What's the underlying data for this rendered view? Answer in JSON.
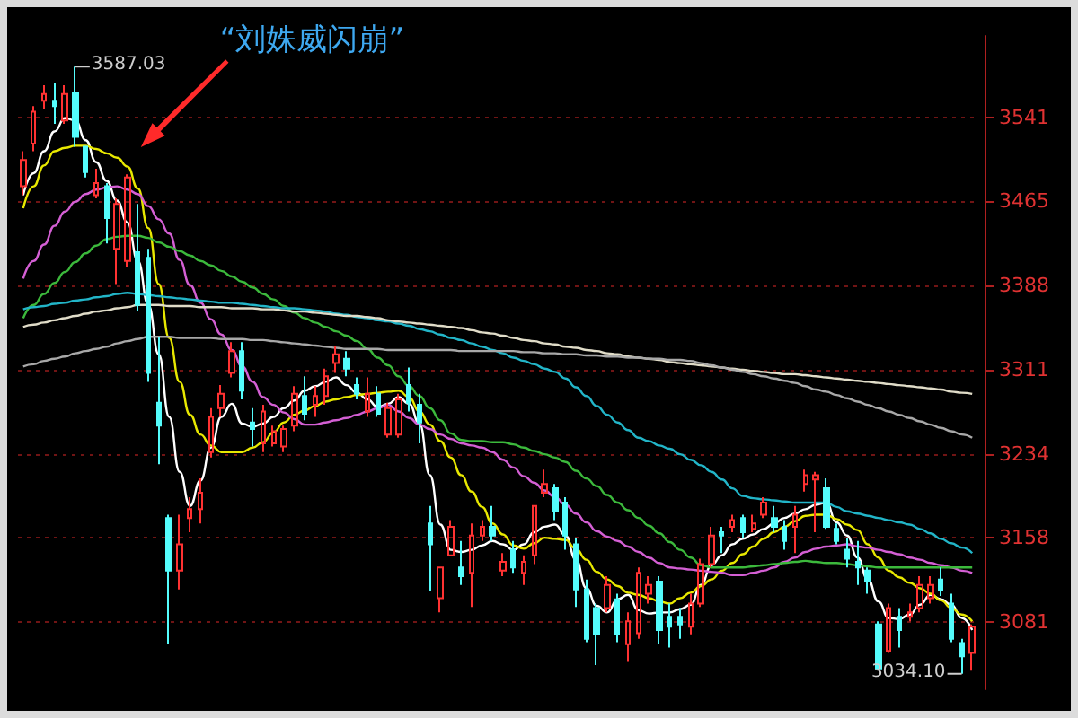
{
  "chart_data": {
    "type": "candlestick",
    "categories": [
      null,
      null,
      null,
      null,
      null,
      null,
      null,
      null,
      null,
      null,
      null,
      null,
      null,
      null,
      null,
      null,
      null,
      null,
      null,
      null,
      null,
      null,
      null,
      null,
      null,
      null,
      null,
      null,
      null,
      null,
      null,
      null,
      null,
      null,
      null,
      null,
      null,
      null,
      null,
      null,
      null,
      null,
      null,
      null,
      null,
      null,
      null,
      null,
      null,
      null,
      null,
      null,
      null,
      null,
      null,
      null,
      null,
      null,
      null,
      null,
      null,
      null,
      null,
      null,
      null,
      null,
      null,
      null,
      null,
      null,
      null,
      null,
      null,
      null,
      null,
      null,
      null,
      null,
      null,
      null,
      null,
      null,
      null,
      null,
      null,
      null,
      null,
      null,
      null,
      null,
      null,
      null
    ],
    "ohlc": [
      [
        3478,
        3510,
        3470,
        3502
      ],
      [
        3517,
        3551,
        3510,
        3546
      ],
      [
        3556,
        3570,
        3548,
        3562
      ],
      [
        3556,
        3572,
        3535,
        3551
      ],
      [
        3538,
        3570,
        3535,
        3562
      ],
      [
        3563,
        3587.03,
        3514,
        3523
      ],
      [
        3514,
        3514,
        3486,
        3491
      ],
      [
        3470,
        3494,
        3467,
        3481
      ],
      [
        3478,
        3481,
        3426,
        3449
      ],
      [
        3421,
        3467,
        3389,
        3462
      ],
      [
        3410,
        3489,
        3405,
        3486
      ],
      [
        3418,
        3462,
        3365,
        3370
      ],
      [
        3413,
        3421,
        3300,
        3308
      ],
      [
        3281,
        3341,
        3225,
        3260
      ],
      [
        3176,
        3179,
        3061,
        3128
      ],
      [
        3128,
        3179,
        3111,
        3152
      ],
      [
        3176,
        3195,
        3163,
        3184
      ],
      [
        3184,
        3212,
        3171,
        3199
      ],
      [
        3236,
        3276,
        3231,
        3268
      ],
      [
        3276,
        3297,
        3268,
        3289
      ],
      [
        3308,
        3336,
        3304,
        3328
      ],
      [
        3328,
        3336,
        3284,
        3292
      ],
      [
        3263,
        3276,
        3241,
        3257
      ],
      [
        3244,
        3279,
        3236,
        3273
      ],
      [
        3244,
        3260,
        3241,
        3255
      ],
      [
        3241,
        3260,
        3236,
        3257
      ],
      [
        3260,
        3296,
        3255,
        3289
      ],
      [
        3287,
        3305,
        3265,
        3271
      ],
      [
        3279,
        3296,
        3268,
        3287
      ],
      [
        3287,
        3312,
        3279,
        3305
      ],
      [
        3317,
        3333,
        3308,
        3325
      ],
      [
        3321,
        3328,
        3305,
        3312
      ],
      [
        3297,
        3304,
        3284,
        3289
      ],
      [
        3273,
        3304,
        3268,
        3289
      ],
      [
        3289,
        3296,
        3268,
        3271
      ],
      [
        3252,
        3281,
        3249,
        3276
      ],
      [
        3252,
        3289,
        3249,
        3284
      ],
      [
        3297,
        3313,
        3273,
        3281
      ],
      [
        3279,
        3289,
        3244,
        3263
      ],
      [
        3171,
        3187,
        3110,
        3152
      ],
      [
        3103,
        3131,
        3090,
        3131
      ],
      [
        3142,
        3174,
        3142,
        3168
      ],
      [
        3131,
        3155,
        3115,
        3123
      ],
      [
        3126,
        3171,
        3095,
        3160
      ],
      [
        3160,
        3174,
        3155,
        3168
      ],
      [
        3168,
        3187,
        3155,
        3160
      ],
      [
        3128,
        3144,
        3123,
        3136
      ],
      [
        3147,
        3155,
        3126,
        3131
      ],
      [
        3126,
        3142,
        3115,
        3136
      ],
      [
        3142,
        3187,
        3134,
        3187
      ],
      [
        3199,
        3220,
        3195,
        3207
      ],
      [
        3203,
        3207,
        3174,
        3182
      ],
      [
        3190,
        3195,
        3147,
        3160
      ],
      [
        3152,
        3158,
        3095,
        3111
      ],
      [
        3111,
        3120,
        3063,
        3066
      ],
      [
        3094,
        3098,
        3042,
        3070
      ],
      [
        3094,
        3123,
        3090,
        3115
      ],
      [
        3102,
        3107,
        3063,
        3070
      ],
      [
        3061,
        3090,
        3045,
        3082
      ],
      [
        3071,
        3131,
        3066,
        3126
      ],
      [
        3107,
        3123,
        3098,
        3115
      ],
      [
        3118,
        3123,
        3061,
        3074
      ],
      [
        3086,
        3098,
        3058,
        3077
      ],
      [
        3086,
        3094,
        3066,
        3079
      ],
      [
        3077,
        3107,
        3070,
        3098
      ],
      [
        3098,
        3139,
        3095,
        3134
      ],
      [
        3134,
        3168,
        3131,
        3160
      ],
      [
        3163,
        3168,
        3144,
        3160
      ],
      [
        3168,
        3179,
        3163,
        3174
      ],
      [
        3176,
        3179,
        3158,
        3163
      ],
      [
        3166,
        3179,
        3163,
        3171
      ],
      [
        3179,
        3195,
        3176,
        3190
      ],
      [
        3176,
        3187,
        3163,
        3168
      ],
      [
        3168,
        3174,
        3147,
        3155
      ],
      [
        3168,
        3187,
        3144,
        3179
      ],
      [
        3207,
        3220,
        3200,
        3215
      ],
      [
        3211,
        3218,
        3163,
        3215
      ],
      [
        3203,
        3212,
        3166,
        3168
      ],
      [
        3166,
        3171,
        3152,
        3155
      ],
      [
        3147,
        3158,
        3131,
        3139
      ],
      [
        3136,
        3155,
        3115,
        3131
      ],
      [
        3128,
        3131,
        3107,
        3118
      ],
      [
        3079,
        3082,
        3039,
        3039
      ],
      [
        3055,
        3098,
        3053,
        3094
      ],
      [
        3086,
        3094,
        3058,
        3074
      ],
      [
        3086,
        3098,
        3082,
        3090
      ],
      [
        3094,
        3123,
        3090,
        3115
      ],
      [
        3103,
        3123,
        3098,
        3115
      ],
      [
        3120,
        3131,
        3105,
        3110
      ],
      [
        3098,
        3107,
        3063,
        3066
      ],
      [
        3062,
        3066,
        3034.1,
        3050
      ],
      [
        3053,
        3079,
        3037,
        3077
      ]
    ],
    "colors": [
      "#ff3232",
      "#ff3232",
      "#ff3232",
      "#54fcfc",
      "#ff3232",
      "#54fcfc",
      "#54fcfc",
      "#ff3232",
      "#54fcfc",
      "#ff3232",
      "#ff3232",
      "#54fcfc",
      "#54fcfc",
      "#54fcfc",
      "#54fcfc",
      "#ff3232",
      "#ff3232",
      "#ff3232",
      "#ff3232",
      "#ff3232",
      "#ff3232",
      "#54fcfc",
      "#54fcfc",
      "#ff3232",
      "#ff3232",
      "#ff3232",
      "#ff3232",
      "#54fcfc",
      "#ff3232",
      "#ff3232",
      "#ff3232",
      "#54fcfc",
      "#54fcfc",
      "#ff3232",
      "#54fcfc",
      "#ff3232",
      "#ff3232",
      "#54fcfc",
      "#54fcfc",
      "#54fcfc",
      "#ff3232",
      "#ff3232",
      "#54fcfc",
      "#ff3232",
      "#ff3232",
      "#54fcfc",
      "#ff3232",
      "#54fcfc",
      "#ff3232",
      "#ff3232",
      "#ff3232",
      "#54fcfc",
      "#54fcfc",
      "#54fcfc",
      "#54fcfc",
      "#54fcfc",
      "#ff3232",
      "#54fcfc",
      "#ff3232",
      "#ff3232",
      "#ff3232",
      "#54fcfc",
      "#54fcfc",
      "#54fcfc",
      "#ff3232",
      "#ff3232",
      "#ff3232",
      "#54fcfc",
      "#ff3232",
      "#54fcfc",
      "#ff3232",
      "#ff3232",
      "#54fcfc",
      "#54fcfc",
      "#ff3232",
      "#ff3232",
      "#ff3232",
      "#54fcfc",
      "#54fcfc",
      "#54fcfc",
      "#54fcfc",
      "#54fcfc",
      "#54fcfc",
      "#ff3232",
      "#54fcfc",
      "#ff3232",
      "#ff3232",
      "#ff3232",
      "#54fcfc",
      "#54fcfc",
      "#54fcfc",
      "#ff3232"
    ],
    "series": [
      {
        "type": "line",
        "color": "#ffffff",
        "values": [
          3470,
          3490,
          3510,
          3528,
          3540,
          3538,
          3520,
          3500,
          3483,
          3465,
          3445,
          3410,
          3370,
          3325,
          3268,
          3218,
          3187,
          3210,
          3240,
          3268,
          3280,
          3262,
          3259,
          3262,
          3268,
          3276,
          3283,
          3292,
          3296,
          3300,
          3304,
          3297,
          3290,
          3284,
          3277,
          3280,
          3286,
          3280,
          3262,
          3215,
          3170,
          3147,
          3145,
          3147,
          3151,
          3155,
          3152,
          3147,
          3152,
          3163,
          3168,
          3170,
          3160,
          3138,
          3112,
          3096,
          3090,
          3102,
          3106,
          3092,
          3089,
          3090,
          3090,
          3093,
          3097,
          3115,
          3133,
          3142,
          3152,
          3157,
          3161,
          3166,
          3171,
          3176,
          3180,
          3184,
          3188,
          3190,
          3172,
          3160,
          3140,
          3120,
          3100,
          3085,
          3084,
          3088,
          3097,
          3106,
          3102,
          3097,
          3085,
          3074
        ]
      },
      {
        "type": "line",
        "color": "#e8e800",
        "values": [
          3458,
          3478,
          3497,
          3510,
          3513,
          3515,
          3515,
          3512,
          3508,
          3504,
          3496,
          3476,
          3440,
          3389,
          3340,
          3300,
          3270,
          3252,
          3242,
          3236,
          3236,
          3236,
          3240,
          3245,
          3254,
          3263,
          3270,
          3274,
          3278,
          3282,
          3284,
          3286,
          3288,
          3289,
          3290,
          3291,
          3292,
          3286,
          3273,
          3261,
          3246,
          3231,
          3215,
          3200,
          3186,
          3171,
          3161,
          3151,
          3148,
          3153,
          3158,
          3157,
          3156,
          3148,
          3138,
          3127,
          3120,
          3114,
          3108,
          3106,
          3103,
          3100,
          3098,
          3103,
          3108,
          3114,
          3120,
          3128,
          3135,
          3143,
          3150,
          3157,
          3163,
          3168,
          3173,
          3178,
          3179,
          3179,
          3175,
          3170,
          3165,
          3152,
          3140,
          3128,
          3122,
          3117,
          3112,
          3107,
          3101,
          3094,
          3088,
          3082
        ]
      },
      {
        "type": "line",
        "color": "#d45fd4",
        "values": [
          3394,
          3410,
          3425,
          3442,
          3455,
          3464,
          3471,
          3475,
          3477,
          3478,
          3475,
          3471,
          3460,
          3448,
          3435,
          3411,
          3388,
          3372,
          3357,
          3343,
          3329,
          3314,
          3300,
          3286,
          3279,
          3272,
          3266,
          3261,
          3261,
          3263,
          3265,
          3267,
          3270,
          3273,
          3276,
          3279,
          3273,
          3267,
          3261,
          3257,
          3252,
          3248,
          3244,
          3242,
          3240,
          3236,
          3229,
          3222,
          3214,
          3208,
          3201,
          3195,
          3188,
          3180,
          3172,
          3164,
          3159,
          3155,
          3150,
          3145,
          3140,
          3135,
          3131,
          3130,
          3129,
          3128,
          3127,
          3126,
          3124,
          3124,
          3126,
          3128,
          3131,
          3136,
          3140,
          3145,
          3148,
          3150,
          3151,
          3152,
          3150,
          3149,
          3147,
          3145,
          3143,
          3140,
          3138,
          3135,
          3133,
          3131,
          3128,
          3126
        ]
      },
      {
        "type": "line",
        "color": "#3cb93c",
        "values": [
          3358,
          3370,
          3380,
          3390,
          3400,
          3409,
          3417,
          3424,
          3430,
          3432,
          3433,
          3433,
          3431,
          3427,
          3423,
          3419,
          3415,
          3410,
          3406,
          3401,
          3396,
          3391,
          3386,
          3380,
          3375,
          3369,
          3363,
          3358,
          3354,
          3350,
          3346,
          3342,
          3337,
          3330,
          3322,
          3315,
          3305,
          3296,
          3287,
          3276,
          3265,
          3253,
          3247,
          3246,
          3246,
          3245,
          3245,
          3243,
          3240,
          3237,
          3234,
          3231,
          3227,
          3219,
          3212,
          3205,
          3197,
          3190,
          3183,
          3176,
          3169,
          3162,
          3154,
          3147,
          3140,
          3133,
          3131,
          3131,
          3131,
          3131,
          3132,
          3133,
          3134,
          3135,
          3136,
          3137,
          3136,
          3135,
          3135,
          3134,
          3133,
          3132,
          3131,
          3131,
          3131,
          3131,
          3131,
          3131,
          3131,
          3131,
          3131,
          3131
        ]
      },
      {
        "type": "line",
        "color": "#22b5c8",
        "values": [
          3366,
          3368,
          3369,
          3371,
          3372,
          3374,
          3375,
          3377,
          3378,
          3380,
          3381,
          3380,
          3379,
          3378,
          3377,
          3376,
          3375,
          3374,
          3373,
          3372,
          3372,
          3371,
          3370,
          3369,
          3368,
          3367,
          3367,
          3366,
          3365,
          3364,
          3362,
          3361,
          3359,
          3358,
          3356,
          3355,
          3353,
          3351,
          3348,
          3346,
          3343,
          3340,
          3338,
          3335,
          3332,
          3329,
          3326,
          3322,
          3319,
          3316,
          3312,
          3309,
          3303,
          3295,
          3287,
          3278,
          3270,
          3263,
          3256,
          3249,
          3246,
          3242,
          3239,
          3234,
          3229,
          3224,
          3218,
          3211,
          3203,
          3196,
          3194,
          3193,
          3192,
          3191,
          3190,
          3190,
          3190,
          3190,
          3186,
          3182,
          3180,
          3178,
          3176,
          3174,
          3172,
          3170,
          3166,
          3162,
          3157,
          3153,
          3149,
          3144
        ]
      },
      {
        "type": "line",
        "color": "#e0dcc8",
        "values": [
          3350,
          3352,
          3354,
          3356,
          3358,
          3360,
          3362,
          3364,
          3365,
          3367,
          3368,
          3370,
          3370,
          3370,
          3369,
          3369,
          3369,
          3368,
          3368,
          3368,
          3367,
          3367,
          3367,
          3366,
          3366,
          3365,
          3364,
          3364,
          3363,
          3362,
          3361,
          3360,
          3360,
          3359,
          3358,
          3356,
          3355,
          3354,
          3353,
          3352,
          3351,
          3350,
          3349,
          3347,
          3345,
          3344,
          3342,
          3340,
          3338,
          3337,
          3335,
          3334,
          3332,
          3331,
          3329,
          3328,
          3326,
          3325,
          3323,
          3322,
          3321,
          3320,
          3318,
          3317,
          3316,
          3315,
          3314,
          3313,
          3312,
          3311,
          3310,
          3309,
          3308,
          3307,
          3307,
          3306,
          3305,
          3304,
          3303,
          3302,
          3301,
          3300,
          3299,
          3298,
          3297,
          3296,
          3295,
          3294,
          3293,
          3291,
          3290,
          3289
        ]
      },
      {
        "type": "line",
        "color": "#a8a8a8",
        "values": [
          3314,
          3316,
          3319,
          3321,
          3323,
          3326,
          3328,
          3330,
          3332,
          3335,
          3337,
          3339,
          3341,
          3341,
          3341,
          3340,
          3340,
          3340,
          3340,
          3339,
          3339,
          3339,
          3338,
          3338,
          3337,
          3336,
          3335,
          3334,
          3333,
          3332,
          3331,
          3330,
          3330,
          3330,
          3330,
          3329,
          3329,
          3329,
          3329,
          3329,
          3329,
          3329,
          3328,
          3328,
          3328,
          3328,
          3328,
          3328,
          3327,
          3327,
          3326,
          3326,
          3325,
          3325,
          3324,
          3324,
          3323,
          3323,
          3322,
          3322,
          3321,
          3321,
          3320,
          3320,
          3319,
          3317,
          3315,
          3313,
          3311,
          3309,
          3307,
          3305,
          3303,
          3301,
          3299,
          3296,
          3293,
          3291,
          3288,
          3285,
          3282,
          3279,
          3276,
          3273,
          3270,
          3267,
          3264,
          3261,
          3258,
          3255,
          3252,
          3249
        ]
      }
    ],
    "ylim": [
      3020,
      3615
    ],
    "yticks": [
      3541,
      3465,
      3388,
      3311,
      3234,
      3158,
      3081
    ],
    "tick_labels": "y",
    "grid": "y",
    "annotations": [
      "“刘姝威闪崩”",
      "3587.03",
      "3034.10"
    ]
  }
}
